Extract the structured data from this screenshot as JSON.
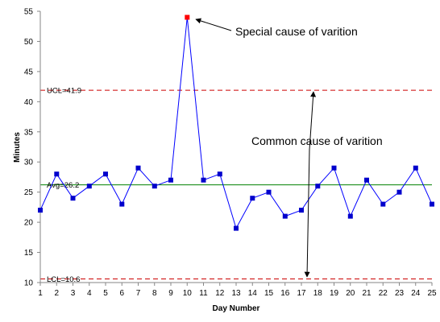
{
  "chart_data": {
    "type": "line",
    "title": "",
    "xlabel": "Day Number",
    "ylabel": "Minutes",
    "xlim": [
      1,
      25
    ],
    "ylim": [
      10,
      55
    ],
    "x_ticks": [
      1,
      2,
      3,
      4,
      5,
      6,
      7,
      8,
      9,
      10,
      11,
      12,
      13,
      14,
      15,
      16,
      17,
      18,
      19,
      20,
      21,
      22,
      23,
      24,
      25
    ],
    "y_ticks": [
      10,
      15,
      20,
      25,
      30,
      35,
      40,
      45,
      50,
      55
    ],
    "grid": false,
    "legend": "none",
    "series": [
      {
        "x": [
          1,
          2,
          3,
          4,
          5,
          6,
          7,
          8,
          9,
          10,
          11,
          12,
          13,
          14,
          15,
          16,
          17,
          18,
          19,
          20,
          21,
          22,
          23,
          24,
          25
        ],
        "values": [
          22,
          28,
          24,
          26,
          28,
          23,
          29,
          26,
          27,
          54,
          27,
          28,
          19,
          24,
          25,
          21,
          22,
          26,
          29,
          21,
          27,
          23,
          25,
          29,
          23
        ],
        "line_color": "#0000ff",
        "marker_color": "#0000cc",
        "highlight_index": 9,
        "highlight_color": "#ff0000"
      }
    ],
    "control_limits": {
      "ucl": {
        "value": 41.9,
        "label": "UCL=41.9",
        "color": "#cc0000"
      },
      "avg": {
        "value": 26.2,
        "label": "Avg=26.2",
        "color": "#008000"
      },
      "lcl": {
        "value": 10.6,
        "label": "LCL=10.6",
        "color": "#cc0000"
      }
    },
    "annotations": [
      {
        "text": "Special cause of varition"
      },
      {
        "text": "Common cause of varition"
      }
    ]
  }
}
